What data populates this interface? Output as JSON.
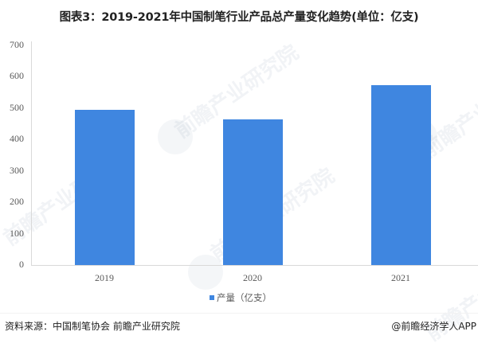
{
  "title": "图表3：2019-2021年中国制笔行业产品总产量变化趋势(单位：亿支)",
  "chart_data": {
    "type": "bar",
    "title": "图表3：2019-2021年中国制笔行业产品总产量变化趋势(单位：亿支)",
    "categories": [
      "2019",
      "2020",
      "2021"
    ],
    "series": [
      {
        "name": "产量（亿支）",
        "values": [
          495,
          464,
          573
        ],
        "color": "#3f86e0"
      }
    ],
    "xlabel": "",
    "ylabel": "",
    "ylim": [
      0,
      700
    ],
    "yticks": [
      "0",
      "100",
      "200",
      "300",
      "400",
      "500",
      "600",
      "700"
    ],
    "grid": false,
    "legend_position": "bottom"
  },
  "legend": {
    "label": "产量（亿支）"
  },
  "footer": {
    "source": "资料来源：中国制笔协会 前瞻产业研究院",
    "credit": "@前瞻经济学人APP"
  },
  "watermark": {
    "text": "前瞻产业研究院"
  }
}
